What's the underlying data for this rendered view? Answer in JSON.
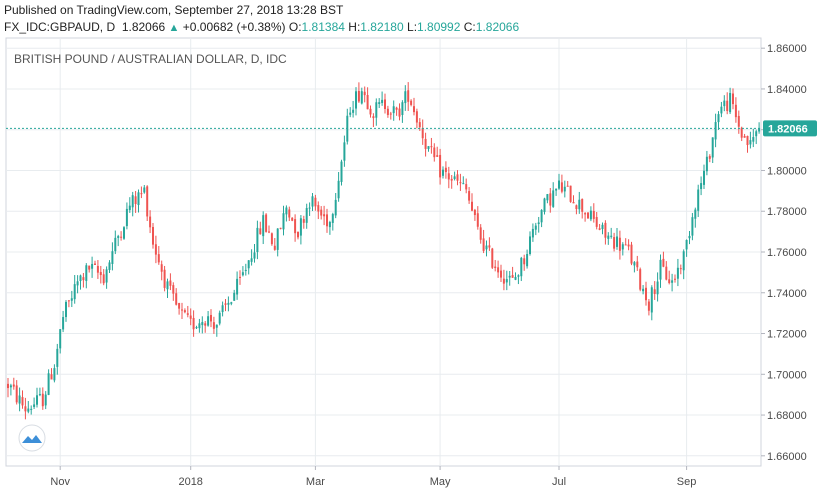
{
  "header": {
    "published": "Published on TradingView.com, September 27, 2018 13:28 BST",
    "symbol": "FX_IDC:GBPAUD, D",
    "last": "1.82066",
    "change": "+0.00682 (+0.38%)",
    "o_label": "O:",
    "o": "1.81384",
    "h_label": "H:",
    "h": "1.82180",
    "l_label": "L:",
    "l": "1.80992",
    "c_label": "C:",
    "c": "1.82066"
  },
  "colors": {
    "up": "#26a69a",
    "down": "#ef5350",
    "price_tag": "#26a69a",
    "grid": "#e8ecef",
    "axis": "#b2b5be"
  },
  "chart_data": {
    "type": "candlestick",
    "title": "BRITISH POUND / AUSTRALIAN DOLLAR, D, IDC",
    "ylim": [
      1.655,
      1.865
    ],
    "y_ticks": [
      "1.66000",
      "1.68000",
      "1.70000",
      "1.72000",
      "1.74000",
      "1.76000",
      "1.78000",
      "1.80000",
      "1.82000",
      "1.84000",
      "1.86000"
    ],
    "y_tick_values": [
      1.66,
      1.68,
      1.7,
      1.72,
      1.74,
      1.76,
      1.78,
      1.8,
      1.82,
      1.84,
      1.86
    ],
    "x_ticks": [
      "Nov",
      "2018",
      "Mar",
      "May",
      "Jul",
      "Sep"
    ],
    "x_tick_index": [
      18,
      63,
      106,
      149,
      190,
      234
    ],
    "last_price": 1.82066,
    "last_price_label": "1.82066",
    "trend": [
      [
        0,
        1.695
      ],
      [
        6,
        1.683
      ],
      [
        12,
        1.688
      ],
      [
        16,
        1.705
      ],
      [
        19,
        1.728
      ],
      [
        24,
        1.745
      ],
      [
        28,
        1.752
      ],
      [
        33,
        1.748
      ],
      [
        38,
        1.768
      ],
      [
        42,
        1.783
      ],
      [
        47,
        1.79
      ],
      [
        50,
        1.765
      ],
      [
        55,
        1.742
      ],
      [
        59,
        1.73
      ],
      [
        63,
        1.724
      ],
      [
        68,
        1.728
      ],
      [
        72,
        1.725
      ],
      [
        76,
        1.735
      ],
      [
        80,
        1.745
      ],
      [
        84,
        1.76
      ],
      [
        88,
        1.775
      ],
      [
        92,
        1.763
      ],
      [
        96,
        1.782
      ],
      [
        100,
        1.77
      ],
      [
        104,
        1.786
      ],
      [
        108,
        1.778
      ],
      [
        111,
        1.775
      ],
      [
        115,
        1.805
      ],
      [
        118,
        1.832
      ],
      [
        122,
        1.84
      ],
      [
        126,
        1.829
      ],
      [
        130,
        1.833
      ],
      [
        134,
        1.827
      ],
      [
        138,
        1.838
      ],
      [
        141,
        1.826
      ],
      [
        145,
        1.81
      ],
      [
        149,
        1.8
      ],
      [
        154,
        1.795
      ],
      [
        158,
        1.79
      ],
      [
        162,
        1.77
      ],
      [
        166,
        1.758
      ],
      [
        170,
        1.75
      ],
      [
        174,
        1.745
      ],
      [
        178,
        1.757
      ],
      [
        182,
        1.775
      ],
      [
        186,
        1.785
      ],
      [
        190,
        1.792
      ],
      [
        194,
        1.788
      ],
      [
        198,
        1.782
      ],
      [
        202,
        1.775
      ],
      [
        206,
        1.768
      ],
      [
        210,
        1.765
      ],
      [
        214,
        1.76
      ],
      [
        218,
        1.745
      ],
      [
        221,
        1.735
      ],
      [
        225,
        1.752
      ],
      [
        229,
        1.745
      ],
      [
        233,
        1.758
      ],
      [
        237,
        1.785
      ],
      [
        241,
        1.803
      ],
      [
        245,
        1.83
      ],
      [
        249,
        1.834
      ],
      [
        253,
        1.818
      ],
      [
        256,
        1.812
      ],
      [
        258,
        1.82
      ]
    ]
  }
}
